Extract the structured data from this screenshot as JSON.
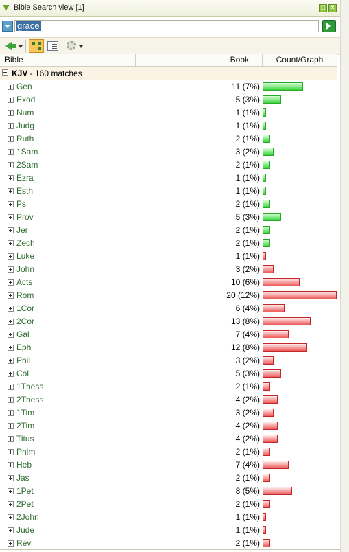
{
  "window": {
    "title": "Bible Search view [1]"
  },
  "search": {
    "value": "grace"
  },
  "columns": {
    "bible": "Bible",
    "book": "Book",
    "count_graph": "Count/Graph"
  },
  "group": {
    "name": "KJV",
    "summary": " - 160 matches"
  },
  "colors": {
    "old_testament_bar": "#39d439",
    "new_testament_bar": "#ee5a5a",
    "book_text": "#2f6b2f",
    "group_bg": "#fbf3e4"
  },
  "icons": [
    "collapse-icon",
    "maximize-icon",
    "close-icon",
    "dropdown-icon",
    "go-arrow-icon",
    "back-arrow-icon",
    "tree-view-icon",
    "list-view-icon",
    "gear-icon",
    "expand-icon"
  ],
  "rows": [
    {
      "book": "Gen",
      "count": "11 (7%)",
      "value": 11,
      "testament": "ot"
    },
    {
      "book": "Exod",
      "count": "5 (3%)",
      "value": 5,
      "testament": "ot"
    },
    {
      "book": "Num",
      "count": "1 (1%)",
      "value": 1,
      "testament": "ot"
    },
    {
      "book": "Judg",
      "count": "1 (1%)",
      "value": 1,
      "testament": "ot"
    },
    {
      "book": "Ruth",
      "count": "2 (1%)",
      "value": 2,
      "testament": "ot"
    },
    {
      "book": "1Sam",
      "count": "3 (2%)",
      "value": 3,
      "testament": "ot"
    },
    {
      "book": "2Sam",
      "count": "2 (1%)",
      "value": 2,
      "testament": "ot"
    },
    {
      "book": "Ezra",
      "count": "1 (1%)",
      "value": 1,
      "testament": "ot"
    },
    {
      "book": "Esth",
      "count": "1 (1%)",
      "value": 1,
      "testament": "ot"
    },
    {
      "book": "Ps",
      "count": "2 (1%)",
      "value": 2,
      "testament": "ot"
    },
    {
      "book": "Prov",
      "count": "5 (3%)",
      "value": 5,
      "testament": "ot"
    },
    {
      "book": "Jer",
      "count": "2 (1%)",
      "value": 2,
      "testament": "ot"
    },
    {
      "book": "Zech",
      "count": "2 (1%)",
      "value": 2,
      "testament": "ot"
    },
    {
      "book": "Luke",
      "count": "1 (1%)",
      "value": 1,
      "testament": "nt"
    },
    {
      "book": "John",
      "count": "3 (2%)",
      "value": 3,
      "testament": "nt"
    },
    {
      "book": "Acts",
      "count": "10 (6%)",
      "value": 10,
      "testament": "nt"
    },
    {
      "book": "Rom",
      "count": "20 (12%)",
      "value": 20,
      "testament": "nt"
    },
    {
      "book": "1Cor",
      "count": "6 (4%)",
      "value": 6,
      "testament": "nt"
    },
    {
      "book": "2Cor",
      "count": "13 (8%)",
      "value": 13,
      "testament": "nt"
    },
    {
      "book": "Gal",
      "count": "7 (4%)",
      "value": 7,
      "testament": "nt"
    },
    {
      "book": "Eph",
      "count": "12 (8%)",
      "value": 12,
      "testament": "nt"
    },
    {
      "book": "Phil",
      "count": "3 (2%)",
      "value": 3,
      "testament": "nt"
    },
    {
      "book": "Col",
      "count": "5 (3%)",
      "value": 5,
      "testament": "nt"
    },
    {
      "book": "1Thess",
      "count": "2 (1%)",
      "value": 2,
      "testament": "nt"
    },
    {
      "book": "2Thess",
      "count": "4 (2%)",
      "value": 4,
      "testament": "nt"
    },
    {
      "book": "1Tim",
      "count": "3 (2%)",
      "value": 3,
      "testament": "nt"
    },
    {
      "book": "2Tim",
      "count": "4 (2%)",
      "value": 4,
      "testament": "nt"
    },
    {
      "book": "Titus",
      "count": "4 (2%)",
      "value": 4,
      "testament": "nt"
    },
    {
      "book": "Phlm",
      "count": "2 (1%)",
      "value": 2,
      "testament": "nt"
    },
    {
      "book": "Heb",
      "count": "7 (4%)",
      "value": 7,
      "testament": "nt"
    },
    {
      "book": "Jas",
      "count": "2 (1%)",
      "value": 2,
      "testament": "nt"
    },
    {
      "book": "1Pet",
      "count": "8 (5%)",
      "value": 8,
      "testament": "nt"
    },
    {
      "book": "2Pet",
      "count": "2 (1%)",
      "value": 2,
      "testament": "nt"
    },
    {
      "book": "2John",
      "count": "1 (1%)",
      "value": 1,
      "testament": "nt"
    },
    {
      "book": "Jude",
      "count": "1 (1%)",
      "value": 1,
      "testament": "nt"
    },
    {
      "book": "Rev",
      "count": "2 (1%)",
      "value": 2,
      "testament": "nt"
    }
  ]
}
